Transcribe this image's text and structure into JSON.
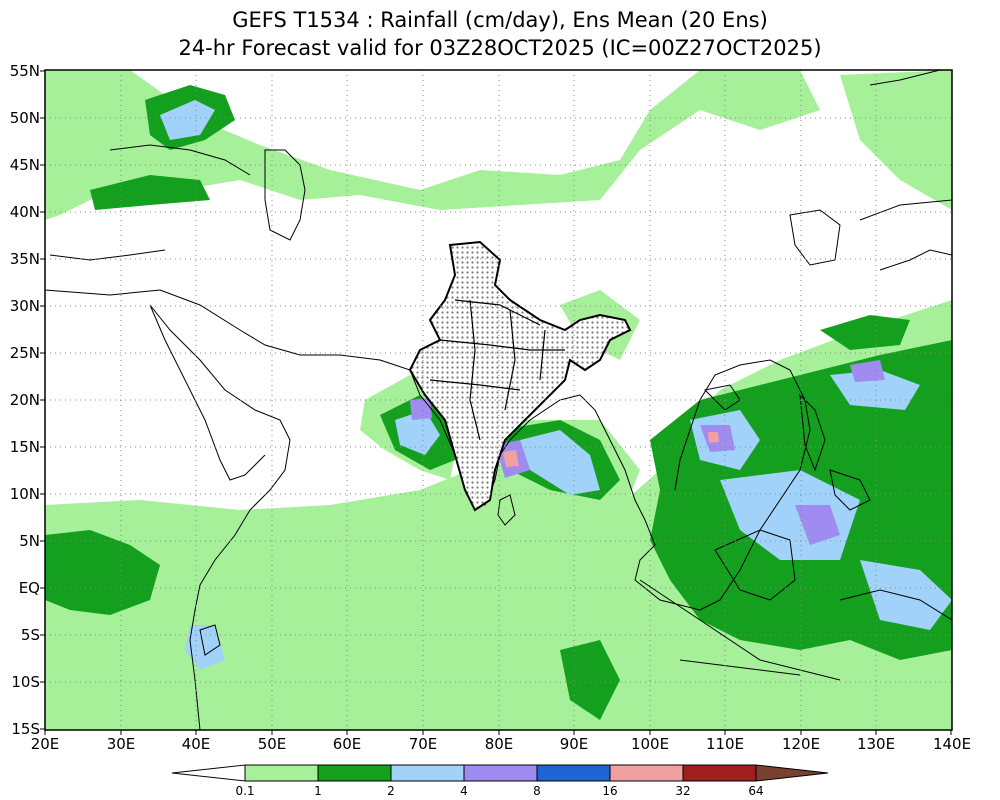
{
  "header": {
    "title_line1": "GEFS T1534 : Rainfall (cm/day), Ens Mean (20 Ens)",
    "title_line2": "24-hr Forecast valid for 03Z28OCT2025 (IC=00Z27OCT2025)"
  },
  "axes": {
    "lat_labels": [
      "55N",
      "50N",
      "45N",
      "40N",
      "35N",
      "30N",
      "25N",
      "20N",
      "15N",
      "10N",
      "5N",
      "EQ",
      "5S",
      "10S",
      "15S"
    ],
    "lon_labels": [
      "20E",
      "30E",
      "40E",
      "50E",
      "60E",
      "70E",
      "80E",
      "90E",
      "100E",
      "110E",
      "120E",
      "130E",
      "140E"
    ]
  },
  "colorbar": {
    "labels": [
      "0.1",
      "1",
      "2",
      "4",
      "8",
      "16",
      "32",
      "64"
    ],
    "colors": [
      "#ffffff",
      "#a6f09a",
      "#14a01e",
      "#a0d2fa",
      "#a08cf0",
      "#1e64d2",
      "#f0a0a0",
      "#a01e1e",
      "#7a4030"
    ]
  },
  "map": {
    "lon_range": [
      20,
      140
    ],
    "lat_range": [
      -15,
      55
    ],
    "grid": "dotted",
    "land_outline_color": "#000000"
  }
}
